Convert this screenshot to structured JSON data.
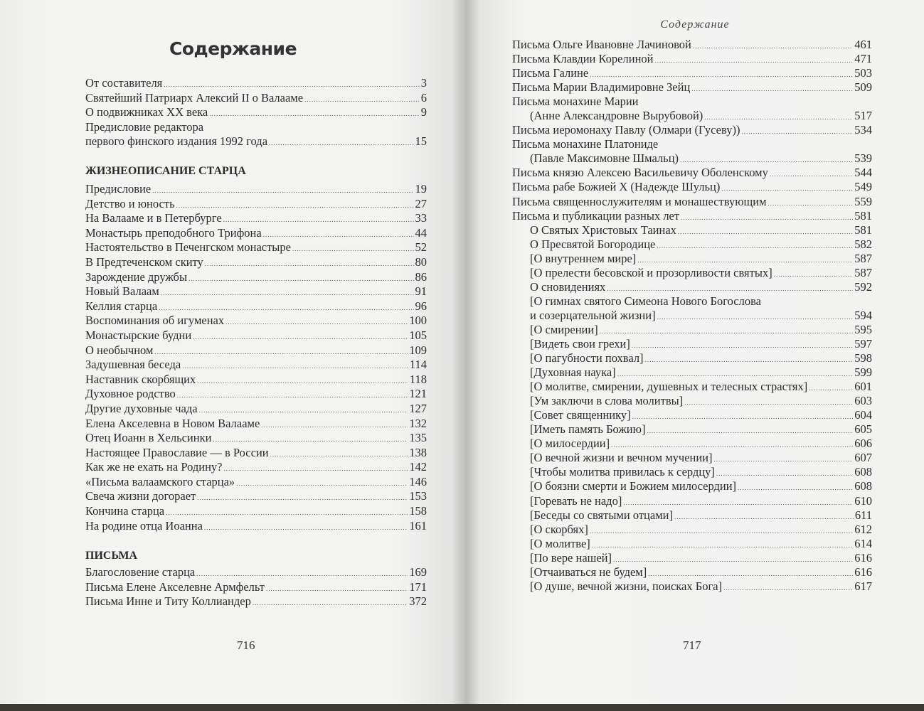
{
  "left": {
    "title": "Содержание",
    "intro": [
      {
        "text": "От составителя",
        "page": "3"
      },
      {
        "text": "Святейший Патриарх Алексий II о Валааме",
        "page": "6"
      },
      {
        "text": "О подвижниках  XX века",
        "page": "9"
      },
      {
        "text": "Предисловие редактора",
        "page": ""
      },
      {
        "text": "первого финского издания 1992 года",
        "page": "15"
      }
    ],
    "section1": {
      "heading": "ЖИЗНЕОПИСАНИЕ СТАРЦА",
      "entries": [
        {
          "text": "Предисловие ",
          "page": "19"
        },
        {
          "text": "Детство и юность",
          "page": "27"
        },
        {
          "text": "На Валааме и в Петербурге",
          "page": "33"
        },
        {
          "text": "Монастырь преподобного Трифона",
          "page": "44"
        },
        {
          "text": "Настоятельство в Печенгском монастыре",
          "page": "52"
        },
        {
          "text": "В Предтеченском скиту",
          "page": "80"
        },
        {
          "text": "Зарождение дружбы",
          "page": "86"
        },
        {
          "text": "Новый Валаам",
          "page": "91"
        },
        {
          "text": "Келлия старца",
          "page": "96"
        },
        {
          "text": "Воспоминания об игуменах",
          "page": "100"
        },
        {
          "text": "Монастырские будни",
          "page": "105"
        },
        {
          "text": "О необычном",
          "page": "109"
        },
        {
          "text": "Задушевная беседа",
          "page": "114"
        },
        {
          "text": "Наставник скорбящих",
          "page": "118"
        },
        {
          "text": "Духовное родство",
          "page": "121"
        },
        {
          "text": "Другие духовные чада",
          "page": "127"
        },
        {
          "text": "Елена Акселевна в Новом Валааме",
          "page": "132"
        },
        {
          "text": "Отец Иоанн в Хельсинки",
          "page": "135"
        },
        {
          "text": "Настоящее Православие — в России",
          "page": "138"
        },
        {
          "text": "Как же не ехать на Родину?",
          "page": "142"
        },
        {
          "text": "«Письма валаамского старца»",
          "page": "146"
        },
        {
          "text": "Свеча жизни догорает",
          "page": "153"
        },
        {
          "text": "Кончина старца",
          "page": "158"
        },
        {
          "text": "На родине отца Иоанна",
          "page": "161"
        }
      ]
    },
    "section2": {
      "heading": "ПИСЬМА",
      "entries": [
        {
          "text": "Благословение старца",
          "page": "169"
        },
        {
          "text": "Письма Елене Акселевне Армфельт",
          "page": "171"
        },
        {
          "text": "Письма Инне и Титу Коллиандер",
          "page": "372"
        }
      ]
    },
    "page_number": "716"
  },
  "right": {
    "running_head": "Содержание",
    "entries": [
      {
        "text": "Письма Ольге Ивановне Лачиновой",
        "page": "461",
        "indent": false
      },
      {
        "text": "Письма Клавдии Корелиной",
        "page": "471",
        "indent": false
      },
      {
        "text": "Письма Галине",
        "page": "503",
        "indent": false
      },
      {
        "text": "Письма Марии Владимировне Зейц",
        "page": "509",
        "indent": false
      },
      {
        "text": "Письма монахине Марии",
        "page": "",
        "indent": false
      },
      {
        "text": "(Анне Александровне Вырубовой)",
        "page": "517",
        "indent": true
      },
      {
        "text": "Письма иеромонаху Павлу (Олмари (Гусеву))",
        "page": "534",
        "indent": false
      },
      {
        "text": "Письма монахине Платониде",
        "page": "",
        "indent": false
      },
      {
        "text": "(Павле Максимовне Шмальц) ",
        "page": "539",
        "indent": true
      },
      {
        "text": "Письма князю Алексею Васильевичу Оболенскому",
        "page": "544",
        "indent": false
      },
      {
        "text": "Письма рабе Божией Х (Надежде Шульц) ",
        "page": "549",
        "indent": false
      },
      {
        "text": "Письма священнослужителям и монашествующим",
        "page": "559",
        "indent": false
      },
      {
        "text": "Письма и публикации разных лет",
        "page": "581",
        "indent": false
      },
      {
        "text": "О Святых Христовых Таинах",
        "page": "581",
        "indent": true
      },
      {
        "text": "О Пресвятой Богородице",
        "page": "582",
        "indent": true
      },
      {
        "text": "[О внутреннем мире]",
        "page": "587",
        "indent": true
      },
      {
        "text": "[О прелести бесовской и прозорливости святых]",
        "page": "587",
        "indent": true
      },
      {
        "text": "О сновидениях",
        "page": "592",
        "indent": true
      },
      {
        "text": "[О гимнах святого Симеона Нового Богослова",
        "page": "",
        "indent": true
      },
      {
        "text": "и созерцательной жизни]",
        "page": "594",
        "indent": true
      },
      {
        "text": "[О смирении]",
        "page": "595",
        "indent": true
      },
      {
        "text": "[Видеть свои грехи]",
        "page": "597",
        "indent": true
      },
      {
        "text": "[О пагубности похвал]",
        "page": "598",
        "indent": true
      },
      {
        "text": "[Духовная наука]",
        "page": "599",
        "indent": true
      },
      {
        "text": "[О молитве, смирении, душевных и телесных страстях]",
        "page": "601",
        "indent": true
      },
      {
        "text": "[Ум заключи в слова молитвы]",
        "page": "603",
        "indent": true
      },
      {
        "text": "[Совет священнику]",
        "page": "604",
        "indent": true
      },
      {
        "text": "[Иметь память Божию]",
        "page": "605",
        "indent": true
      },
      {
        "text": "[О милосердии]",
        "page": "606",
        "indent": true
      },
      {
        "text": "[О вечной жизни и вечном мучении]",
        "page": "607",
        "indent": true
      },
      {
        "text": "[Чтобы молитва привилась к сердцу]",
        "page": "608",
        "indent": true
      },
      {
        "text": "[О боязни смерти и Божием милосердии]",
        "page": "608",
        "indent": true
      },
      {
        "text": "[Горевать не надо]",
        "page": "610",
        "indent": true
      },
      {
        "text": "[Беседы со святыми отцами]",
        "page": "611",
        "indent": true
      },
      {
        "text": "[О скорбях]",
        "page": "612",
        "indent": true
      },
      {
        "text": "[О молитве]",
        "page": "614",
        "indent": true
      },
      {
        "text": "[По вере нашей]",
        "page": "616",
        "indent": true
      },
      {
        "text": "[Отчаиваться не будем]",
        "page": "616",
        "indent": true
      },
      {
        "text": "[О душе, вечной жизни, поисках Бога]",
        "page": "617",
        "indent": true
      }
    ],
    "page_number": "717"
  }
}
